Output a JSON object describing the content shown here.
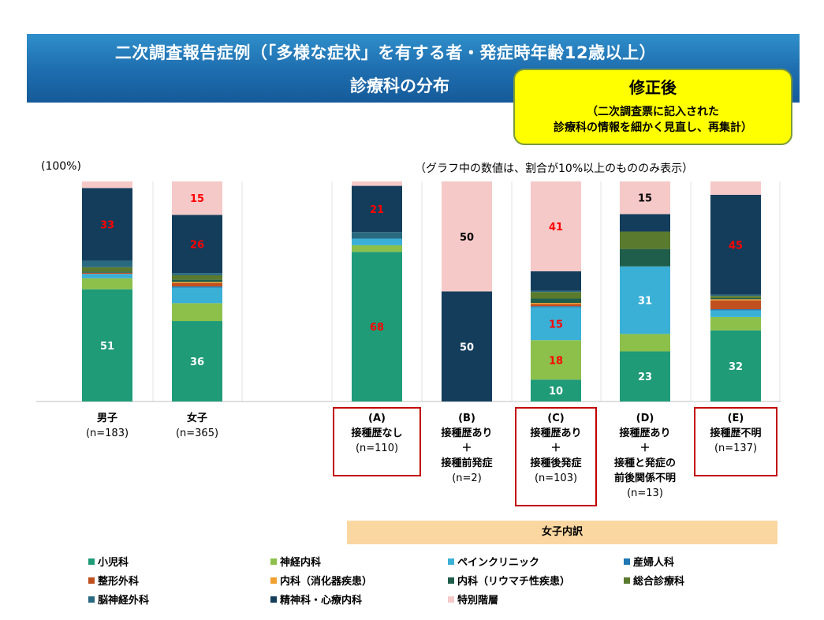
{
  "title": {
    "line1": "二次調査報告症例（「多様な症状」を有する者・発症時年齢12歳以上）",
    "line2": "診療科の分布"
  },
  "note": {
    "heading": "修正後",
    "line1": "（二次調査票に記入された",
    "line2": "診療科の情報を細かく見直し、再集計）"
  },
  "y_top_label": "(100%)",
  "value_note": "（グラフ中の数値は、割合が10%以上のもののみ表示）",
  "subgroup_band": "女子内訳",
  "groups": [
    {
      "lines": [
        "男子"
      ],
      "n": "(n=183)"
    },
    {
      "lines": [
        "女子"
      ],
      "n": "(n=365)"
    },
    {
      "lines": [
        "(A)",
        "接種歴なし"
      ],
      "n": "(n=110)"
    },
    {
      "lines": [
        "(B)",
        "接種歴あり",
        "＋",
        "接種前発症"
      ],
      "n": "(n=2)"
    },
    {
      "lines": [
        "(C)",
        "接種歴あり",
        "＋",
        "接種後発症"
      ],
      "n": "(n=103)"
    },
    {
      "lines": [
        "(D)",
        "接種歴あり",
        "＋",
        "接種と発症の",
        "前後関係不明"
      ],
      "n": "(n=13)"
    },
    {
      "lines": [
        "(E)",
        "接種歴不明"
      ],
      "n": "(n=137)"
    }
  ],
  "chart_data": {
    "type": "bar",
    "stacked": true,
    "ylim": [
      0,
      100
    ],
    "categories": [
      "男子",
      "女子",
      "(A)",
      "(B)",
      "(C)",
      "(D)",
      "(E)"
    ],
    "series": [
      {
        "name": "小児科",
        "color": "#1f9b78",
        "values": [
          51,
          36,
          68,
          0,
          10,
          23,
          32
        ]
      },
      {
        "name": "神経内科",
        "color": "#8cc04b",
        "values": [
          5,
          8,
          3,
          0,
          18,
          8,
          6
        ]
      },
      {
        "name": "ペインクリニック",
        "color": "#3bb0d6",
        "values": [
          2,
          7,
          3,
          0,
          15,
          31,
          3
        ]
      },
      {
        "name": "産婦人科",
        "color": "#1f77b4",
        "values": [
          0,
          0.5,
          0,
          0,
          0.5,
          0,
          0.5
        ]
      },
      {
        "name": "整形外科",
        "color": "#c0501f",
        "values": [
          0.5,
          1.5,
          0,
          0,
          1,
          0,
          4
        ]
      },
      {
        "name": "内科（消化器疾患）",
        "color": "#f0a030",
        "values": [
          0,
          0.5,
          0,
          0,
          0.5,
          0,
          0.5
        ]
      },
      {
        "name": "内科（リウマチ性疾患）",
        "color": "#1f5e4a",
        "values": [
          0.5,
          1,
          0,
          0,
          2,
          8,
          0.5
        ]
      },
      {
        "name": "総合診療科",
        "color": "#5a7a2e",
        "values": [
          2,
          2,
          0,
          0,
          3,
          8,
          1
        ]
      },
      {
        "name": "脳神経外科",
        "color": "#2a6a80",
        "values": [
          3,
          1,
          3,
          0,
          0.5,
          0,
          0.5
        ]
      },
      {
        "name": "精神科・心療内科",
        "color": "#143d5c",
        "values": [
          33,
          26,
          21,
          50,
          9,
          8,
          45
        ]
      },
      {
        "name": "特別階層",
        "color": "#f6c9c9",
        "values": [
          3,
          15,
          2,
          50,
          41,
          15,
          6
        ]
      }
    ],
    "data_labels": [
      {
        "series": "小児科",
        "category": "男子",
        "text": "51",
        "color": "#ffffff"
      },
      {
        "series": "精神科・心療内科",
        "category": "男子",
        "text": "33",
        "color": "#ff0000"
      },
      {
        "series": "小児科",
        "category": "女子",
        "text": "36",
        "color": "#ffffff"
      },
      {
        "series": "精神科・心療内科",
        "category": "女子",
        "text": "26",
        "color": "#ff0000"
      },
      {
        "series": "特別階層",
        "category": "女子",
        "text": "15",
        "color": "#ff0000"
      },
      {
        "series": "小児科",
        "category": "(A)",
        "text": "68",
        "color": "#ff0000"
      },
      {
        "series": "精神科・心療内科",
        "category": "(A)",
        "text": "21",
        "color": "#ff0000"
      },
      {
        "series": "精神科・心療内科",
        "category": "(B)",
        "text": "50",
        "color": "#ffffff"
      },
      {
        "series": "特別階層",
        "category": "(B)",
        "text": "50",
        "color": "#000000"
      },
      {
        "series": "小児科",
        "category": "(C)",
        "text": "10",
        "color": "#ffffff"
      },
      {
        "series": "神経内科",
        "category": "(C)",
        "text": "18",
        "color": "#ff0000"
      },
      {
        "series": "ペインクリニック",
        "category": "(C)",
        "text": "15",
        "color": "#ff0000"
      },
      {
        "series": "特別階層",
        "category": "(C)",
        "text": "41",
        "color": "#ff0000"
      },
      {
        "series": "小児科",
        "category": "(D)",
        "text": "23",
        "color": "#ffffff"
      },
      {
        "series": "ペインクリニック",
        "category": "(D)",
        "text": "31",
        "color": "#ffffff"
      },
      {
        "series": "特別階層",
        "category": "(D)",
        "text": "15",
        "color": "#000000"
      },
      {
        "series": "小児科",
        "category": "(E)",
        "text": "32",
        "color": "#ffffff"
      },
      {
        "series": "精神科・心療内科",
        "category": "(E)",
        "text": "45",
        "color": "#ff0000"
      }
    ]
  }
}
